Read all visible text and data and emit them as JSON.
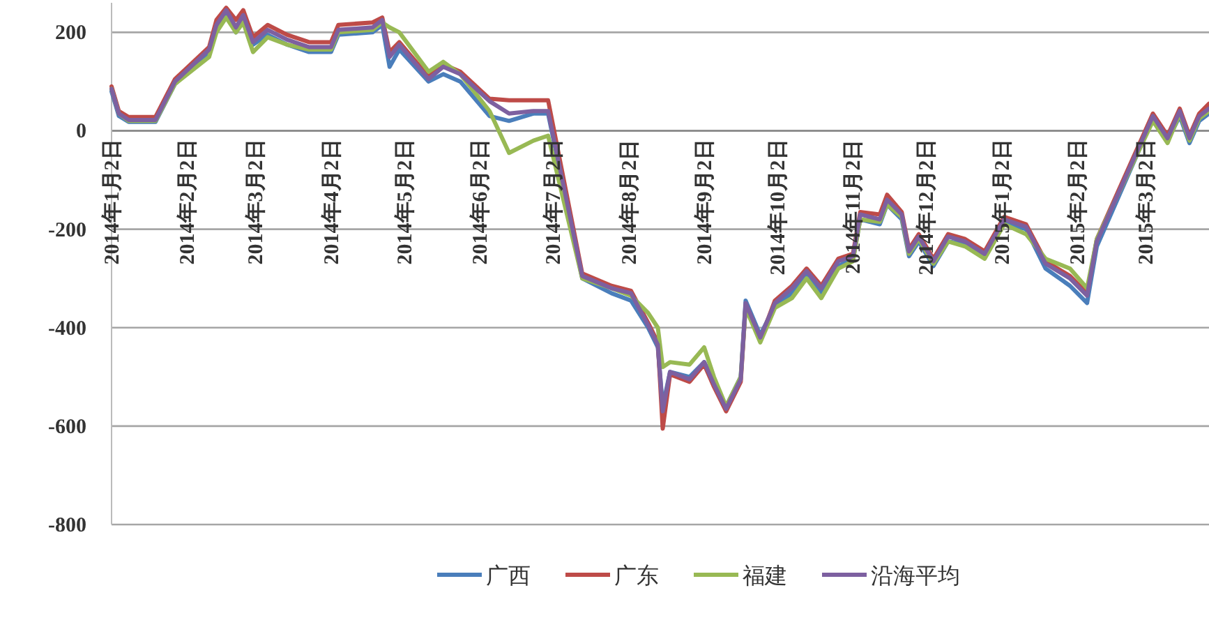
{
  "chart_data": {
    "type": "line",
    "x": [
      "2014-01-02",
      "2014-01-05",
      "2014-01-09",
      "2014-01-20",
      "2014-01-28",
      "2014-02-11",
      "2014-02-14",
      "2014-02-18",
      "2014-02-22",
      "2014-02-25",
      "2014-03-01",
      "2014-03-07",
      "2014-03-15",
      "2014-03-24",
      "2014-04-02",
      "2014-04-05",
      "2014-04-19",
      "2014-04-23",
      "2014-04-26",
      "2014-04-30",
      "2014-05-12",
      "2014-05-18",
      "2014-05-25",
      "2014-06-06",
      "2014-06-14",
      "2014-06-24",
      "2014-06-30",
      "2014-07-14",
      "2014-07-26",
      "2014-08-03",
      "2014-08-10",
      "2014-08-14",
      "2014-08-16",
      "2014-08-19",
      "2014-08-27",
      "2014-09-02",
      "2014-09-06",
      "2014-09-11",
      "2014-09-17",
      "2014-09-19",
      "2014-09-25",
      "2014-10-01",
      "2014-10-08",
      "2014-10-14",
      "2014-10-20",
      "2014-10-27",
      "2014-11-02",
      "2014-11-05",
      "2014-11-13",
      "2014-11-16",
      "2014-11-22",
      "2014-11-25",
      "2014-11-29",
      "2014-12-05",
      "2014-12-11",
      "2014-12-18",
      "2014-12-26",
      "2015-01-03",
      "2015-01-12",
      "2015-01-20",
      "2015-01-30",
      "2015-02-06",
      "2015-02-10",
      "2015-03-05",
      "2015-03-11",
      "2015-03-16",
      "2015-03-20",
      "2015-03-24",
      "2015-03-28"
    ],
    "series": [
      {
        "name": "广西",
        "color": "#4a7ebb",
        "values": [
          80,
          30,
          18,
          18,
          95,
          160,
          205,
          235,
          200,
          225,
          175,
          195,
          175,
          160,
          160,
          195,
          200,
          215,
          130,
          165,
          100,
          115,
          100,
          30,
          20,
          35,
          35,
          -300,
          -330,
          -345,
          -400,
          -440,
          -560,
          -490,
          -500,
          -470,
          -510,
          -560,
          -500,
          -345,
          -415,
          -355,
          -330,
          -295,
          -330,
          -275,
          -260,
          -180,
          -190,
          -150,
          -180,
          -255,
          -225,
          -275,
          -225,
          -230,
          -255,
          -185,
          -200,
          -280,
          -315,
          -350,
          -235,
          25,
          -20,
          30,
          -25,
          20,
          35
        ]
      },
      {
        "name": "广东",
        "color": "#be4b48",
        "values": [
          90,
          40,
          28,
          28,
          105,
          170,
          225,
          250,
          225,
          245,
          190,
          215,
          195,
          180,
          180,
          215,
          220,
          230,
          160,
          180,
          110,
          135,
          120,
          65,
          62,
          62,
          62,
          -290,
          -315,
          -325,
          -390,
          -430,
          -605,
          -495,
          -510,
          -475,
          -520,
          -570,
          -510,
          -355,
          -425,
          -345,
          -315,
          -280,
          -315,
          -260,
          -250,
          -165,
          -170,
          -130,
          -165,
          -240,
          -210,
          -260,
          -210,
          -220,
          -245,
          -175,
          -190,
          -265,
          -295,
          -330,
          -220,
          35,
          -10,
          45,
          -10,
          35,
          55
        ]
      },
      {
        "name": "福建",
        "color": "#98b954",
        "values": [
          85,
          35,
          20,
          20,
          95,
          150,
          200,
          230,
          200,
          220,
          160,
          190,
          175,
          165,
          165,
          200,
          205,
          220,
          210,
          200,
          120,
          140,
          115,
          40,
          -45,
          -20,
          -10,
          -300,
          -320,
          -335,
          -370,
          -400,
          -480,
          -470,
          -475,
          -440,
          -500,
          -560,
          -500,
          -360,
          -430,
          -360,
          -340,
          -300,
          -340,
          -280,
          -265,
          -180,
          -185,
          -150,
          -175,
          -250,
          -220,
          -270,
          -225,
          -235,
          -260,
          -190,
          -210,
          -260,
          -280,
          -320,
          -220,
          20,
          -25,
          35,
          -20,
          25,
          40
        ]
      },
      {
        "name": "沿海平均",
        "color": "#7d60a0",
        "values": [
          85,
          35,
          22,
          22,
          100,
          165,
          215,
          245,
          210,
          235,
          180,
          205,
          185,
          170,
          170,
          205,
          210,
          225,
          150,
          175,
          105,
          130,
          115,
          60,
          35,
          40,
          40,
          -295,
          -320,
          -330,
          -395,
          -435,
          -570,
          -490,
          -505,
          -470,
          -515,
          -565,
          -505,
          -350,
          -420,
          -350,
          -320,
          -285,
          -320,
          -265,
          -255,
          -170,
          -180,
          -140,
          -170,
          -245,
          -215,
          -265,
          -215,
          -225,
          -250,
          -180,
          -195,
          -270,
          -300,
          -335,
          -225,
          30,
          -15,
          40,
          -15,
          30,
          45
        ]
      }
    ],
    "xlim": [
      "2014-01-02",
      "2015-03-28"
    ],
    "xticks": [
      {
        "value": "2014-01-02",
        "label": "2014年1月2日"
      },
      {
        "value": "2014-02-02",
        "label": "2014年2月2日"
      },
      {
        "value": "2014-03-02",
        "label": "2014年3月2日"
      },
      {
        "value": "2014-04-02",
        "label": "2014年4月2日"
      },
      {
        "value": "2014-05-02",
        "label": "2014年5月2日"
      },
      {
        "value": "2014-06-02",
        "label": "2014年6月2日"
      },
      {
        "value": "2014-07-02",
        "label": "2014年7月2日"
      },
      {
        "value": "2014-08-02",
        "label": "2014年8月2日"
      },
      {
        "value": "2014-09-02",
        "label": "2014年9月2日"
      },
      {
        "value": "2014-10-02",
        "label": "2014年10月2日"
      },
      {
        "value": "2014-11-02",
        "label": "2014年11月2日"
      },
      {
        "value": "2014-12-02",
        "label": "2014年12月2日"
      },
      {
        "value": "2015-01-02",
        "label": "2015年1月2日"
      },
      {
        "value": "2015-02-02",
        "label": "2015年2月2日"
      },
      {
        "value": "2015-03-02",
        "label": "2015年3月2日"
      }
    ],
    "ylim": [
      -800,
      260
    ],
    "yticks": [
      -800,
      -600,
      -400,
      -200,
      0,
      200
    ],
    "grid": "y",
    "legend": "bottom",
    "marker": "none",
    "line_style": "solid"
  }
}
